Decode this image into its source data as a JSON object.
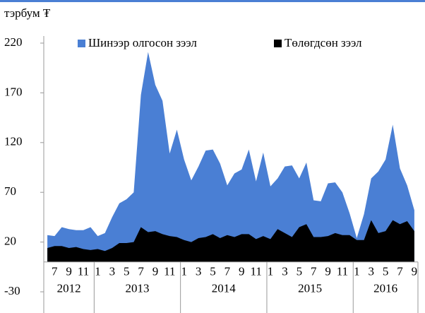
{
  "chart_data": {
    "type": "area",
    "y_label": "тэрбум ₮",
    "categories": [
      null,
      "7",
      null,
      "9",
      null,
      "11",
      null,
      "1",
      null,
      "3",
      null,
      "5",
      null,
      "7",
      null,
      "9",
      null,
      "11",
      null,
      "1",
      null,
      "3",
      null,
      "5",
      null,
      "7",
      null,
      "9",
      null,
      "11",
      null,
      "1",
      null,
      "3",
      null,
      "5",
      null,
      "7",
      null,
      "9",
      null,
      "11",
      null,
      "1",
      null,
      "3",
      null,
      "5",
      null,
      "7",
      null,
      "9"
    ],
    "year_groups": [
      {
        "label": "2012",
        "span": 7
      },
      {
        "label": "2013",
        "span": 12
      },
      {
        "label": "2014",
        "span": 12
      },
      {
        "label": "2015",
        "span": 12
      },
      {
        "label": "2016",
        "span": 9
      }
    ],
    "series": [
      {
        "name": "Шинээр олгосон зээл",
        "color": "#4a7fd4",
        "values": [
          27,
          26,
          35,
          33,
          32,
          32,
          35,
          26,
          29,
          45,
          59,
          63,
          70,
          168,
          211,
          178,
          162,
          109,
          133,
          103,
          82,
          96,
          112,
          113,
          99,
          77,
          89,
          93,
          113,
          81,
          110,
          76,
          84,
          96,
          97,
          84,
          100,
          62,
          61,
          79,
          80,
          70,
          49,
          24,
          48,
          84,
          91,
          103,
          138,
          94,
          77,
          52
        ]
      },
      {
        "name": "Төлөгдсөн зээл",
        "color": "#000000",
        "values": [
          14,
          16,
          16,
          14,
          15,
          13,
          12,
          13,
          11,
          14,
          19,
          19,
          20,
          35,
          30,
          31,
          28,
          26,
          25,
          22,
          20,
          24,
          25,
          28,
          24,
          27,
          25,
          28,
          28,
          23,
          26,
          23,
          33,
          29,
          25,
          35,
          38,
          25,
          25,
          26,
          29,
          27,
          27,
          22,
          22,
          42,
          29,
          31,
          42,
          38,
          41,
          31
        ]
      }
    ],
    "ylim": [
      -30,
      220
    ],
    "yticks": [
      -30,
      20,
      70,
      120,
      170,
      220
    ],
    "stacked": false
  }
}
